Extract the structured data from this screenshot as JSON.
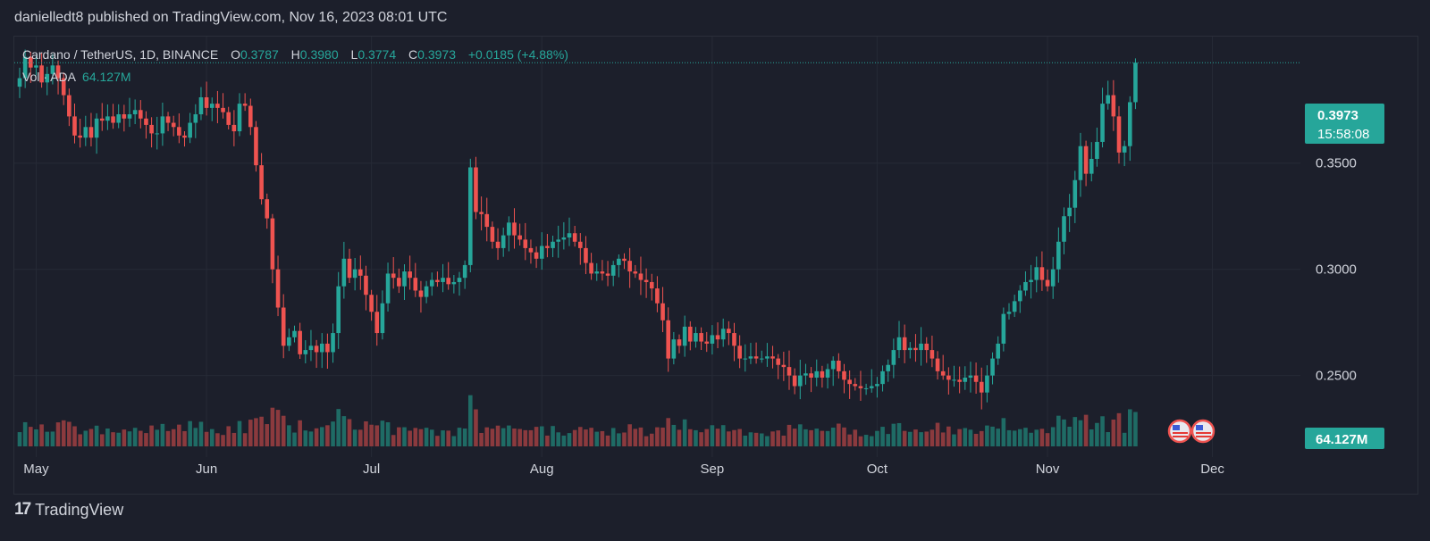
{
  "header": {
    "published": "danielledt8 published on TradingView.com, Nov 16, 2023 08:01 UTC"
  },
  "legend": {
    "symbol": "Cardano / TetherUS, 1D, BINANCE",
    "o_label": "O",
    "o_value": "0.3787",
    "h_label": "H",
    "h_value": "0.3980",
    "l_label": "L",
    "l_value": "0.3774",
    "c_label": "C",
    "c_value": "0.3973",
    "change": "+0.0185 (+4.88%)",
    "vol_label": "Vol · ADA",
    "vol_value": "64.127M"
  },
  "price_tag": {
    "price": "0.3973",
    "countdown": "15:58:08"
  },
  "volume_tag": "64.127M",
  "footer": {
    "brand": "TradingView"
  },
  "colors": {
    "up": "#26a69a",
    "down": "#ef5350",
    "vol_up": "#1f6b65",
    "vol_down": "#8b3a3e",
    "grid": "#262a36",
    "bg": "#1c1f2b"
  },
  "chart_data": {
    "type": "candlestick",
    "symbol": "ADAUSDT",
    "timeframe": "1D",
    "ylim": [
      0.22,
      0.41
    ],
    "y_ticks": [
      "0.2500",
      "0.3000",
      "0.3500"
    ],
    "x_ticks": [
      "May",
      "Jun",
      "Jul",
      "Aug",
      "Sep",
      "Oct",
      "Nov",
      "Dec"
    ],
    "x_tick_day_index": [
      3,
      34,
      64,
      95,
      126,
      156,
      187,
      217
    ],
    "last_price": 0.3973,
    "close": [
      0.39,
      0.4,
      0.395,
      0.396,
      0.388,
      0.392,
      0.396,
      0.39,
      0.382,
      0.372,
      0.363,
      0.362,
      0.367,
      0.362,
      0.371,
      0.37,
      0.372,
      0.369,
      0.373,
      0.371,
      0.373,
      0.375,
      0.371,
      0.368,
      0.364,
      0.364,
      0.372,
      0.369,
      0.367,
      0.363,
      0.362,
      0.369,
      0.373,
      0.381,
      0.376,
      0.378,
      0.376,
      0.374,
      0.368,
      0.365,
      0.378,
      0.377,
      0.367,
      0.349,
      0.333,
      0.324,
      0.3,
      0.282,
      0.264,
      0.268,
      0.271,
      0.26,
      0.262,
      0.264,
      0.261,
      0.265,
      0.261,
      0.27,
      0.292,
      0.305,
      0.296,
      0.3,
      0.297,
      0.288,
      0.28,
      0.27,
      0.284,
      0.298,
      0.296,
      0.292,
      0.299,
      0.296,
      0.29,
      0.287,
      0.292,
      0.295,
      0.294,
      0.296,
      0.293,
      0.294,
      0.296,
      0.302,
      0.348,
      0.327,
      0.326,
      0.32,
      0.313,
      0.31,
      0.316,
      0.322,
      0.316,
      0.314,
      0.31,
      0.308,
      0.305,
      0.311,
      0.31,
      0.313,
      0.314,
      0.315,
      0.317,
      0.313,
      0.31,
      0.303,
      0.298,
      0.299,
      0.298,
      0.297,
      0.302,
      0.305,
      0.304,
      0.299,
      0.298,
      0.295,
      0.294,
      0.291,
      0.284,
      0.276,
      0.258,
      0.267,
      0.264,
      0.273,
      0.266,
      0.27,
      0.266,
      0.265,
      0.269,
      0.267,
      0.272,
      0.27,
      0.264,
      0.258,
      0.258,
      0.259,
      0.258,
      0.258,
      0.259,
      0.258,
      0.255,
      0.254,
      0.25,
      0.245,
      0.25,
      0.251,
      0.249,
      0.252,
      0.249,
      0.253,
      0.257,
      0.252,
      0.248,
      0.246,
      0.245,
      0.244,
      0.244,
      0.245,
      0.246,
      0.252,
      0.255,
      0.262,
      0.268,
      0.262,
      0.263,
      0.262,
      0.265,
      0.262,
      0.258,
      0.252,
      0.25,
      0.248,
      0.248,
      0.247,
      0.249,
      0.25,
      0.247,
      0.242,
      0.25,
      0.258,
      0.265,
      0.279,
      0.28,
      0.285,
      0.29,
      0.294,
      0.295,
      0.301,
      0.295,
      0.292,
      0.3,
      0.313,
      0.325,
      0.329,
      0.342,
      0.358,
      0.345,
      0.352,
      0.36,
      0.378,
      0.382,
      0.372,
      0.355,
      0.358,
      0.3787,
      0.3973
    ]
  }
}
